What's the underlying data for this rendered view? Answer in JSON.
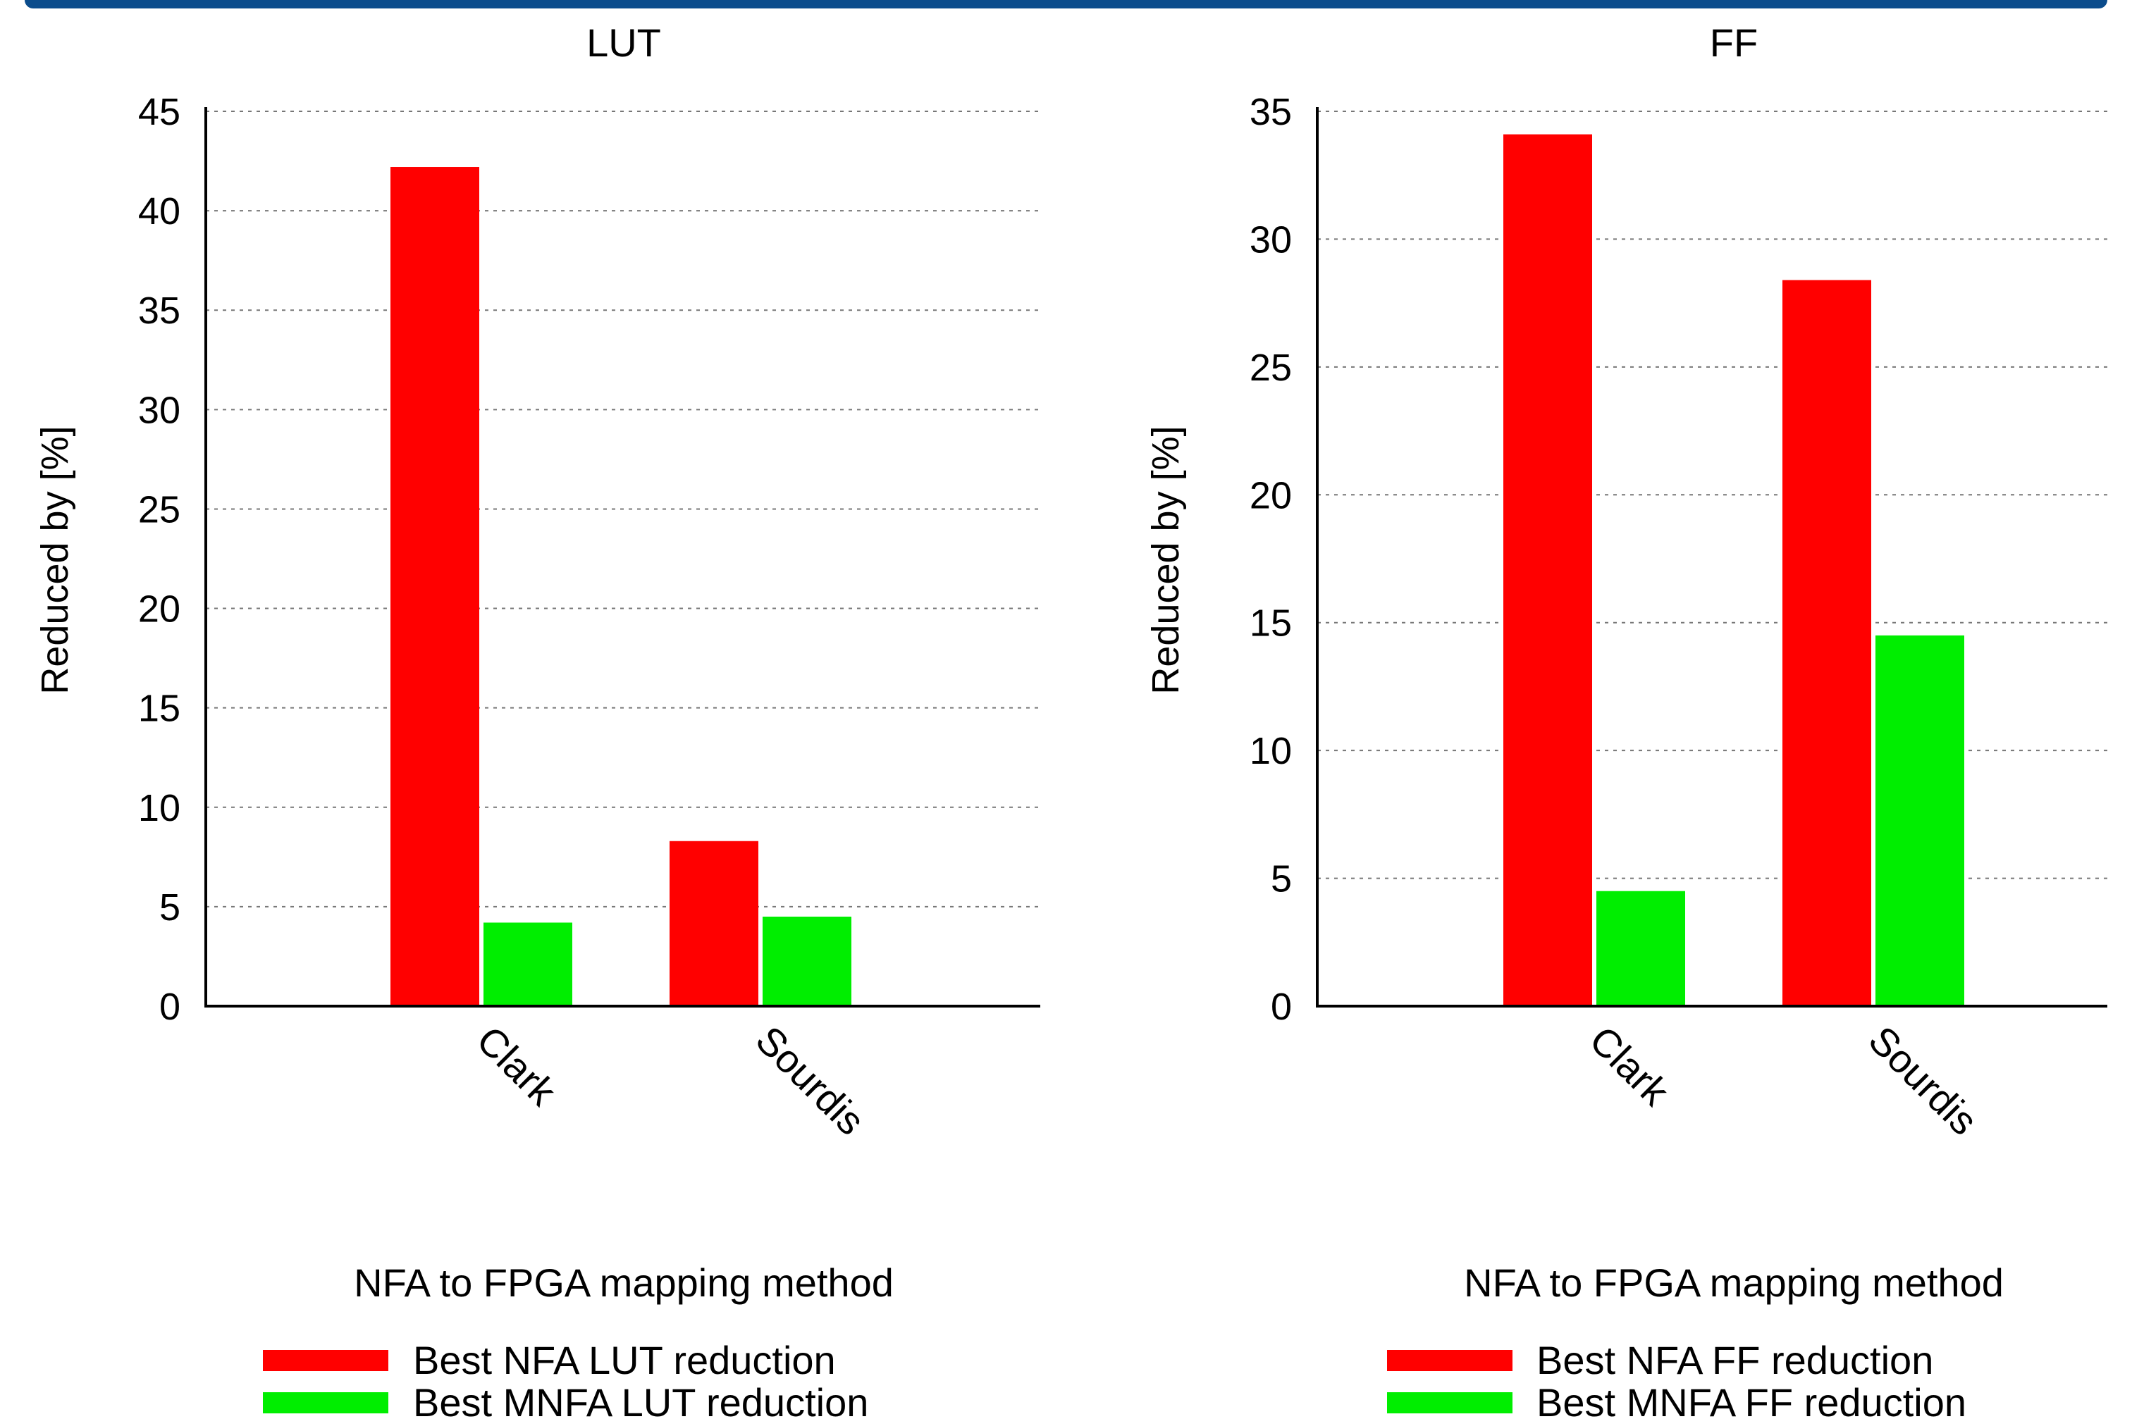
{
  "chart_data": [
    {
      "type": "bar",
      "title": "LUT",
      "xlabel": "NFA to FPGA mapping method",
      "ylabel": "Reduced by [%]",
      "categories": [
        "Clark",
        "Sourdis"
      ],
      "ylim": [
        0,
        45
      ],
      "yticks": [
        0,
        5,
        10,
        15,
        20,
        25,
        30,
        35,
        40,
        45
      ],
      "grid": true,
      "legend_position": "bottom",
      "series": [
        {
          "name": "Best NFA LUT reduction",
          "values": [
            42.2,
            8.3
          ],
          "color": "#ff0000"
        },
        {
          "name": "Best MNFA LUT reduction",
          "values": [
            4.2,
            4.5
          ],
          "color": "#00ee00"
        }
      ]
    },
    {
      "type": "bar",
      "title": "FF",
      "xlabel": "NFA to FPGA mapping method",
      "ylabel": "Reduced by [%]",
      "categories": [
        "Clark",
        "Sourdis"
      ],
      "ylim": [
        0,
        35
      ],
      "yticks": [
        0,
        5,
        10,
        15,
        20,
        25,
        30,
        35
      ],
      "grid": true,
      "legend_position": "bottom",
      "series": [
        {
          "name": "Best NFA FF reduction",
          "values": [
            34.1,
            28.4
          ],
          "color": "#ff0000"
        },
        {
          "name": "Best MNFA FF reduction",
          "values": [
            4.5,
            14.5
          ],
          "color": "#00ee00"
        }
      ]
    }
  ]
}
